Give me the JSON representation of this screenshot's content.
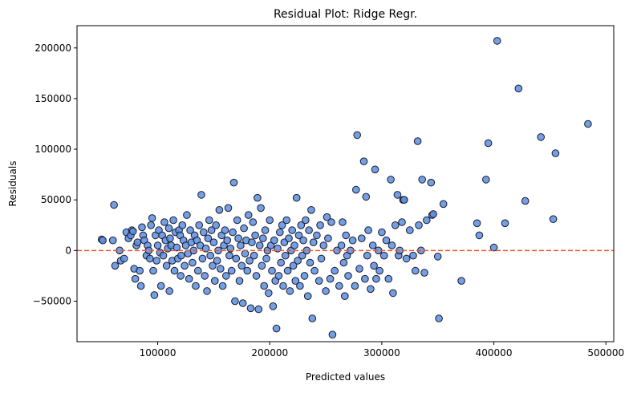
{
  "chart_data": {
    "type": "scatter",
    "title": "Residual Plot: Ridge Regr.",
    "xlabel": "Predicted values",
    "ylabel": "Residuals",
    "xlim": [
      28000,
      507000
    ],
    "ylim": [
      -90000,
      222000
    ],
    "xticks": [
      100000,
      200000,
      300000,
      400000,
      500000
    ],
    "yticks": [
      -50000,
      0,
      50000,
      100000,
      150000,
      200000
    ],
    "grid": false,
    "legend": "none",
    "reference_line": {
      "y": 0,
      "style": "dashed",
      "color": "#ee5533"
    },
    "colors": {
      "point_fill": "#5a8fe0",
      "point_edge": "#1a1a2e"
    },
    "series": [
      {
        "points": [
          [
            50000,
            11000
          ],
          [
            51000,
            10000
          ],
          [
            60000,
            10000
          ],
          [
            61000,
            45000
          ],
          [
            62000,
            -15000
          ],
          [
            66000,
            0
          ],
          [
            67000,
            -10000
          ],
          [
            70000,
            -8000
          ],
          [
            72000,
            18000
          ],
          [
            74000,
            12000
          ],
          [
            76000,
            15000
          ],
          [
            77000,
            20000
          ],
          [
            78000,
            19000
          ],
          [
            79000,
            -18000
          ],
          [
            80000,
            -28000
          ],
          [
            81000,
            5000
          ],
          [
            82000,
            8000
          ],
          [
            84000,
            -20000
          ],
          [
            85000,
            -35000
          ],
          [
            86000,
            23000
          ],
          [
            87000,
            15000
          ],
          [
            88000,
            10000
          ],
          [
            90000,
            -5000
          ],
          [
            91000,
            5000
          ],
          [
            92000,
            0
          ],
          [
            93000,
            -8000
          ],
          [
            94000,
            25000
          ],
          [
            95000,
            32000
          ],
          [
            96000,
            -20000
          ],
          [
            97000,
            -44000
          ],
          [
            98000,
            15000
          ],
          [
            99000,
            -10000
          ],
          [
            100000,
            5000
          ],
          [
            101000,
            20000
          ],
          [
            102000,
            -2000
          ],
          [
            103000,
            -35000
          ],
          [
            104000,
            15000
          ],
          [
            105000,
            -5000
          ],
          [
            106000,
            28000
          ],
          [
            107000,
            10000
          ],
          [
            108000,
            -15000
          ],
          [
            109000,
            2000
          ],
          [
            110000,
            22000
          ],
          [
            110500,
            -40000
          ],
          [
            111000,
            12000
          ],
          [
            112000,
            5000
          ],
          [
            113000,
            -10000
          ],
          [
            114000,
            30000
          ],
          [
            115000,
            -20000
          ],
          [
            116000,
            18000
          ],
          [
            117000,
            3000
          ],
          [
            118000,
            -8000
          ],
          [
            119000,
            20000
          ],
          [
            120000,
            15000
          ],
          [
            120500,
            -25000
          ],
          [
            121000,
            -5000
          ],
          [
            122000,
            25000
          ],
          [
            123000,
            10000
          ],
          [
            124000,
            -15000
          ],
          [
            125000,
            5000
          ],
          [
            126000,
            35000
          ],
          [
            127000,
            -3000
          ],
          [
            128000,
            -28000
          ],
          [
            129000,
            20000
          ],
          [
            130000,
            8000
          ],
          [
            131000,
            -12000
          ],
          [
            132000,
            0
          ],
          [
            133000,
            15000
          ],
          [
            134000,
            -35000
          ],
          [
            135000,
            10000
          ],
          [
            136000,
            -20000
          ],
          [
            137000,
            25000
          ],
          [
            138000,
            5000
          ],
          [
            139000,
            55000
          ],
          [
            140000,
            -8000
          ],
          [
            141000,
            18000
          ],
          [
            142000,
            -25000
          ],
          [
            143000,
            2000
          ],
          [
            144000,
            -40000
          ],
          [
            145000,
            12000
          ],
          [
            146000,
            30000
          ],
          [
            147000,
            -5000
          ],
          [
            148000,
            20000
          ],
          [
            149000,
            -15000
          ],
          [
            150000,
            8000
          ],
          [
            151000,
            -30000
          ],
          [
            152000,
            25000
          ],
          [
            153000,
            -10000
          ],
          [
            154000,
            0
          ],
          [
            155000,
            40000
          ],
          [
            156000,
            -18000
          ],
          [
            157000,
            15000
          ],
          [
            158000,
            -35000
          ],
          [
            159000,
            5000
          ],
          [
            160000,
            20000
          ],
          [
            161000,
            -25000
          ],
          [
            162000,
            10000
          ],
          [
            163000,
            42000
          ],
          [
            164000,
            -5000
          ],
          [
            165000,
            2000
          ],
          [
            166000,
            -20000
          ],
          [
            167000,
            18000
          ],
          [
            168000,
            67000
          ],
          [
            169000,
            -50000
          ],
          [
            170000,
            -8000
          ],
          [
            171000,
            30000
          ],
          [
            172000,
            12000
          ],
          [
            173000,
            -30000
          ],
          [
            174000,
            5000
          ],
          [
            175000,
            -15000
          ],
          [
            176000,
            -52000
          ],
          [
            177000,
            22000
          ],
          [
            178000,
            -3000
          ],
          [
            179000,
            10000
          ],
          [
            180000,
            -20000
          ],
          [
            181000,
            35000
          ],
          [
            182000,
            -10000
          ],
          [
            183000,
            -57000
          ],
          [
            184000,
            8000
          ],
          [
            185000,
            28000
          ],
          [
            186000,
            -5000
          ],
          [
            187000,
            15000
          ],
          [
            188000,
            -25000
          ],
          [
            189000,
            52000
          ],
          [
            190000,
            -58000
          ],
          [
            191000,
            5000
          ],
          [
            192000,
            42000
          ],
          [
            193000,
            -15000
          ],
          [
            194000,
            12000
          ],
          [
            195000,
            -35000
          ],
          [
            196000,
            20000
          ],
          [
            197000,
            -8000
          ],
          [
            198000,
            0
          ],
          [
            199000,
            -42000
          ],
          [
            200000,
            30000
          ],
          [
            201000,
            5000
          ],
          [
            202000,
            -20000
          ],
          [
            203000,
            -55000
          ],
          [
            204000,
            10000
          ],
          [
            205000,
            -30000
          ],
          [
            206000,
            -77000
          ],
          [
            207000,
            2000
          ],
          [
            208000,
            -25000
          ],
          [
            209000,
            18000
          ],
          [
            210000,
            -12000
          ],
          [
            211000,
            25000
          ],
          [
            212000,
            -35000
          ],
          [
            213000,
            8000
          ],
          [
            214000,
            -5000
          ],
          [
            215000,
            30000
          ],
          [
            216000,
            -20000
          ],
          [
            217000,
            12000
          ],
          [
            218000,
            -40000
          ],
          [
            219000,
            0
          ],
          [
            220000,
            20000
          ],
          [
            221000,
            -15000
          ],
          [
            222000,
            5000
          ],
          [
            223000,
            -30000
          ],
          [
            224000,
            52000
          ],
          [
            225000,
            -10000
          ],
          [
            226000,
            15000
          ],
          [
            227000,
            -35000
          ],
          [
            228000,
            25000
          ],
          [
            229000,
            -5000
          ],
          [
            230000,
            10000
          ],
          [
            231000,
            -25000
          ],
          [
            232000,
            30000
          ],
          [
            233000,
            0
          ],
          [
            234000,
            -45000
          ],
          [
            235000,
            20000
          ],
          [
            236000,
            -12000
          ],
          [
            237000,
            40000
          ],
          [
            238000,
            -67000
          ],
          [
            239000,
            8000
          ],
          [
            240000,
            -20000
          ],
          [
            242000,
            15000
          ],
          [
            244000,
            -30000
          ],
          [
            245000,
            25000
          ],
          [
            246000,
            -8000
          ],
          [
            248000,
            5000
          ],
          [
            250000,
            -40000
          ],
          [
            251000,
            33000
          ],
          [
            252000,
            12000
          ],
          [
            254000,
            -28000
          ],
          [
            255000,
            28000
          ],
          [
            256000,
            -83000
          ],
          [
            258000,
            -20000
          ],
          [
            260000,
            0
          ],
          [
            262000,
            -35000
          ],
          [
            264000,
            5000
          ],
          [
            265000,
            28000
          ],
          [
            266000,
            -12000
          ],
          [
            267000,
            -45000
          ],
          [
            268000,
            15000
          ],
          [
            269000,
            -5000
          ],
          [
            270000,
            -25000
          ],
          [
            272000,
            0
          ],
          [
            274000,
            10000
          ],
          [
            276000,
            -35000
          ],
          [
            277000,
            60000
          ],
          [
            278000,
            114000
          ],
          [
            280000,
            -18000
          ],
          [
            282000,
            12000
          ],
          [
            284000,
            88000
          ],
          [
            285000,
            -28000
          ],
          [
            286000,
            53000
          ],
          [
            287000,
            -5000
          ],
          [
            288000,
            20000
          ],
          [
            290000,
            -38000
          ],
          [
            292000,
            5000
          ],
          [
            293000,
            -15000
          ],
          [
            294000,
            80000
          ],
          [
            295000,
            -28000
          ],
          [
            297000,
            0
          ],
          [
            298000,
            -20000
          ],
          [
            300000,
            18000
          ],
          [
            302000,
            -5000
          ],
          [
            304000,
            10000
          ],
          [
            306000,
            -28000
          ],
          [
            308000,
            70000
          ],
          [
            309000,
            5000
          ],
          [
            310000,
            -42000
          ],
          [
            312000,
            25000
          ],
          [
            314000,
            55000
          ],
          [
            315000,
            -5000
          ],
          [
            316000,
            0
          ],
          [
            318000,
            28000
          ],
          [
            319000,
            50000
          ],
          [
            320000,
            50000
          ],
          [
            322000,
            -8000
          ],
          [
            325000,
            20000
          ],
          [
            328000,
            -5000
          ],
          [
            330000,
            -20000
          ],
          [
            332000,
            108000
          ],
          [
            333000,
            25000
          ],
          [
            335000,
            0
          ],
          [
            336000,
            70000
          ],
          [
            338000,
            -22000
          ],
          [
            340000,
            30000
          ],
          [
            344000,
            67000
          ],
          [
            345000,
            35000
          ],
          [
            346000,
            36000
          ],
          [
            350000,
            -6000
          ],
          [
            351000,
            -67000
          ],
          [
            355000,
            46000
          ],
          [
            371000,
            -30000
          ],
          [
            385000,
            27000
          ],
          [
            387000,
            15000
          ],
          [
            393000,
            70000
          ],
          [
            395000,
            106000
          ],
          [
            400000,
            3000
          ],
          [
            403000,
            207000
          ],
          [
            410000,
            27000
          ],
          [
            422000,
            160000
          ],
          [
            428000,
            49000
          ],
          [
            442000,
            112000
          ],
          [
            453000,
            31000
          ],
          [
            455000,
            96000
          ],
          [
            484000,
            125000
          ]
        ]
      }
    ]
  }
}
